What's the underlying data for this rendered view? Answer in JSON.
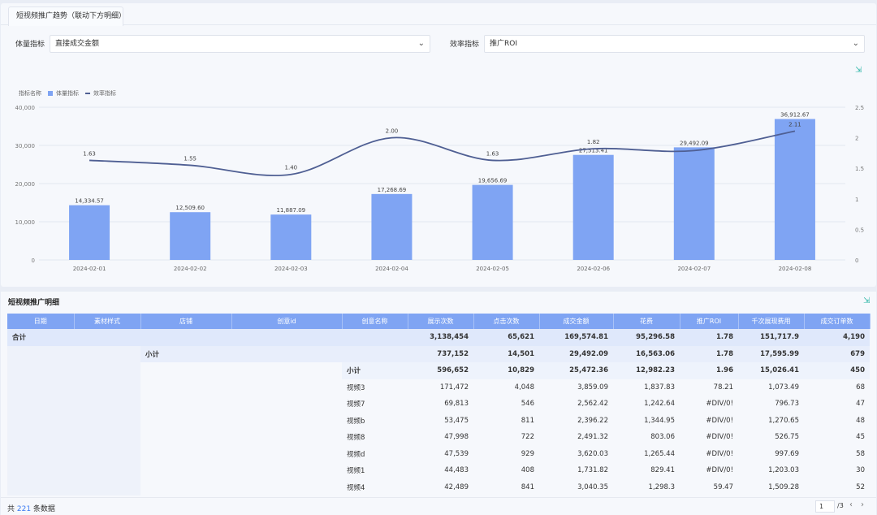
{
  "tab": {
    "label": "短视频推广趋势（联动下方明细）"
  },
  "filters": {
    "volume_label": "体量指标",
    "volume_value": "直接成交金额",
    "efficiency_label": "效率指标",
    "efficiency_value": "推广ROI"
  },
  "legend": {
    "title": "指标名称",
    "bar": "体量指标",
    "line": "效率指标"
  },
  "colors": {
    "bar": "#7fa4f3",
    "line": "#4f5f93",
    "header": "#7fa4f3",
    "accent": "#3a7af2",
    "icon": "#2bb5a6"
  },
  "icons": {
    "export": "export-icon",
    "chevron": "chevron-down-icon"
  },
  "chart_data": {
    "type": "bar",
    "categories": [
      "2024-02-01",
      "2024-02-02",
      "2024-02-03",
      "2024-02-04",
      "2024-02-05",
      "2024-02-06",
      "2024-02-07",
      "2024-02-08"
    ],
    "series": [
      {
        "name": "体量指标",
        "type": "bar",
        "axis": "left",
        "values": [
          14334.57,
          12509.6,
          11887.09,
          17268.69,
          19656.69,
          27513.41,
          29492.09,
          36912.67
        ],
        "labels": [
          "14,334.57",
          "12,509.60",
          "11,887.09",
          "17,268.69",
          "19,656.69",
          "27,513.41",
          "29,492.09",
          "36,912.67"
        ]
      },
      {
        "name": "效率指标",
        "type": "line",
        "axis": "right",
        "smooth": true,
        "values": [
          1.63,
          1.55,
          1.4,
          2.0,
          1.63,
          1.82,
          1.79,
          2.11
        ],
        "labels": [
          "1.63",
          "1.55",
          "1.40",
          "2.00",
          "1.63",
          "1.82",
          "",
          "2.11"
        ]
      }
    ],
    "y_left": {
      "range": [
        0,
        40000
      ],
      "ticks": [
        "0",
        "10,000",
        "20,000",
        "30,000",
        "40,000"
      ]
    },
    "y_right": {
      "range": [
        0,
        2.5
      ],
      "ticks": [
        "0",
        "0.5",
        "1",
        "1.5",
        "2",
        "2.5"
      ]
    },
    "grid": true,
    "legend_position": "top-left"
  },
  "detail": {
    "title": "短视频推广明细",
    "columns": [
      "日期",
      "素材样式",
      "店铺",
      "创意id",
      "创意名称",
      "展示次数",
      "点击次数",
      "成交金额",
      "花费",
      "推广ROI",
      "千次展现费用",
      "成交订单数"
    ],
    "total": {
      "label": "合计",
      "values": [
        "3,138,454",
        "65,621",
        "169,574.81",
        "95,296.58",
        "1.78",
        "151,717.9",
        "4,190"
      ]
    },
    "subtotal1": {
      "label": "小计",
      "values": [
        "737,152",
        "14,501",
        "29,492.09",
        "16,563.06",
        "1.78",
        "17,595.99",
        "679"
      ]
    },
    "subtotal2": {
      "label": "小计",
      "values": [
        "596,652",
        "10,829",
        "25,472.36",
        "12,982.23",
        "1.96",
        "15,026.41",
        "450"
      ]
    },
    "rows": [
      {
        "name": "视频3",
        "values": [
          "171,472",
          "4,048",
          "3,859.09",
          "1,837.83",
          "78.21",
          "1,073.49",
          "68"
        ]
      },
      {
        "name": "视频7",
        "values": [
          "69,813",
          "546",
          "2,562.42",
          "1,242.64",
          "#DIV/0!",
          "796.73",
          "47"
        ]
      },
      {
        "name": "视频b",
        "values": [
          "53,475",
          "811",
          "2,396.22",
          "1,344.95",
          "#DIV/0!",
          "1,270.65",
          "48"
        ]
      },
      {
        "name": "视频8",
        "values": [
          "47,998",
          "722",
          "2,491.32",
          "803.06",
          "#DIV/0!",
          "526.75",
          "45"
        ]
      },
      {
        "name": "视频d",
        "values": [
          "47,539",
          "929",
          "3,620.03",
          "1,265.44",
          "#DIV/0!",
          "997.69",
          "58"
        ]
      },
      {
        "name": "视频1",
        "values": [
          "44,483",
          "408",
          "1,731.82",
          "829.41",
          "#DIV/0!",
          "1,203.03",
          "30"
        ]
      },
      {
        "name": "视频4",
        "values": [
          "42,489",
          "841",
          "3,040.35",
          "1,298.3",
          "59.47",
          "1,509.28",
          "52"
        ]
      }
    ]
  },
  "footer": {
    "prefix": "共 ",
    "count": "221",
    "suffix": " 条数据",
    "page": "1",
    "total_pages": "/3"
  }
}
